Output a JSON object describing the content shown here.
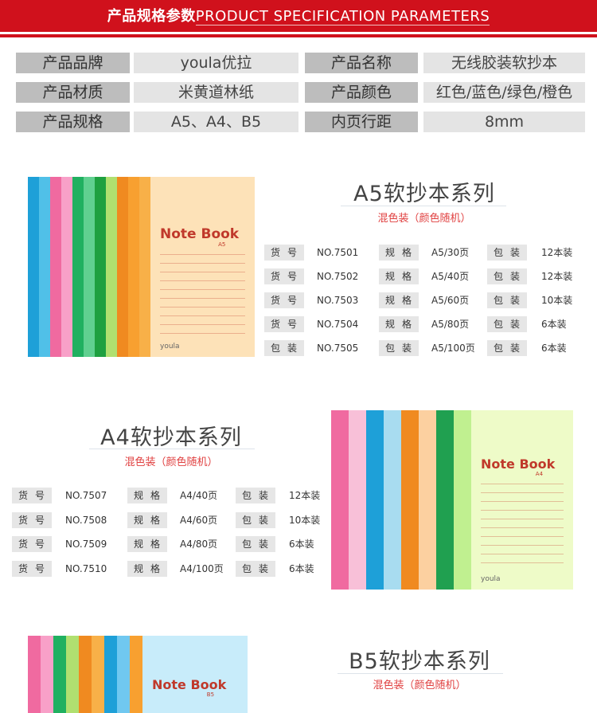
{
  "header": {
    "title_cn": "产品规格参数",
    "title_en": "PRODUCT SPECIFICATION PARAMETERS"
  },
  "specs": [
    {
      "label": "产品品牌",
      "value": "youla优拉",
      "label2": "产品名称",
      "value2": "无线胶装软抄本"
    },
    {
      "label": "产品材质",
      "value": "米黄道林纸",
      "label2": "产品颜色",
      "value2": "红色/蓝色/绿色/橙色"
    },
    {
      "label": "产品规格",
      "value": "A5、A4、B5",
      "label2": "内页行距",
      "value2": "8mm"
    }
  ],
  "series": {
    "a5": {
      "title": "A5软抄本系列",
      "subtitle": "混色装（颜色随机）",
      "cover_title": "Note Book",
      "cover_size": "A5",
      "brand": "youla",
      "stripes": [
        "#1ea0d8",
        "#50c0e8",
        "#f06aa0",
        "#f8a0c8",
        "#20b060",
        "#60d090",
        "#1ea040",
        "#b0e070",
        "#f08a20",
        "#f8a030",
        "#f8b048"
      ],
      "cover_color": "#fde2b8",
      "rows": [
        {
          "k1": "货号",
          "v1": "NO.7501",
          "k2": "规格",
          "v2": "A5/30页",
          "k3": "包装",
          "v3": "12本装"
        },
        {
          "k1": "货号",
          "v1": "NO.7502",
          "k2": "规格",
          "v2": "A5/40页",
          "k3": "包装",
          "v3": "12本装"
        },
        {
          "k1": "货号",
          "v1": "NO.7503",
          "k2": "规格",
          "v2": "A5/60页",
          "k3": "包装",
          "v3": "10本装"
        },
        {
          "k1": "货号",
          "v1": "NO.7504",
          "k2": "规格",
          "v2": "A5/80页",
          "k3": "包装",
          "v3": "6本装"
        },
        {
          "k1": "包装",
          "v1": "NO.7505",
          "k2": "包装",
          "v2": "A5/100页",
          "k3": "包装",
          "v3": "6本装"
        }
      ]
    },
    "a4": {
      "title": "A4软抄本系列",
      "subtitle": "混色装（颜色随机）",
      "cover_title": "Note Book",
      "cover_size": "A4",
      "brand": "youla",
      "stripes": [
        "#f06aa0",
        "#f8c0d8",
        "#1ea0d8",
        "#a8dcf0",
        "#f08a20",
        "#fcd0a0",
        "#20a050",
        "#c0f090"
      ],
      "cover_color": "#eefbc8",
      "rows": [
        {
          "k1": "货号",
          "v1": "NO.7507",
          "k2": "规格",
          "v2": "A4/40页",
          "k3": "包装",
          "v3": "12本装"
        },
        {
          "k1": "货号",
          "v1": "NO.7508",
          "k2": "规格",
          "v2": "A4/60页",
          "k3": "包装",
          "v3": "10本装"
        },
        {
          "k1": "货号",
          "v1": "NO.7509",
          "k2": "规格",
          "v2": "A4/80页",
          "k3": "包装",
          "v3": "6本装"
        },
        {
          "k1": "货号",
          "v1": "NO.7510",
          "k2": "规格",
          "v2": "A4/100页",
          "k3": "包装",
          "v3": "6本装"
        }
      ]
    },
    "b5": {
      "title": "B5软抄本系列",
      "subtitle": "混色装（颜色随机）",
      "cover_title": "Note Book",
      "cover_size": "B5",
      "stripes": [
        "#f06aa0",
        "#f8a0c8",
        "#20b060",
        "#b0e070",
        "#f08a20",
        "#f8b048",
        "#1ea0d8",
        "#70c8f0",
        "#f8a030"
      ],
      "cover_color": "#c8ecfa"
    }
  }
}
